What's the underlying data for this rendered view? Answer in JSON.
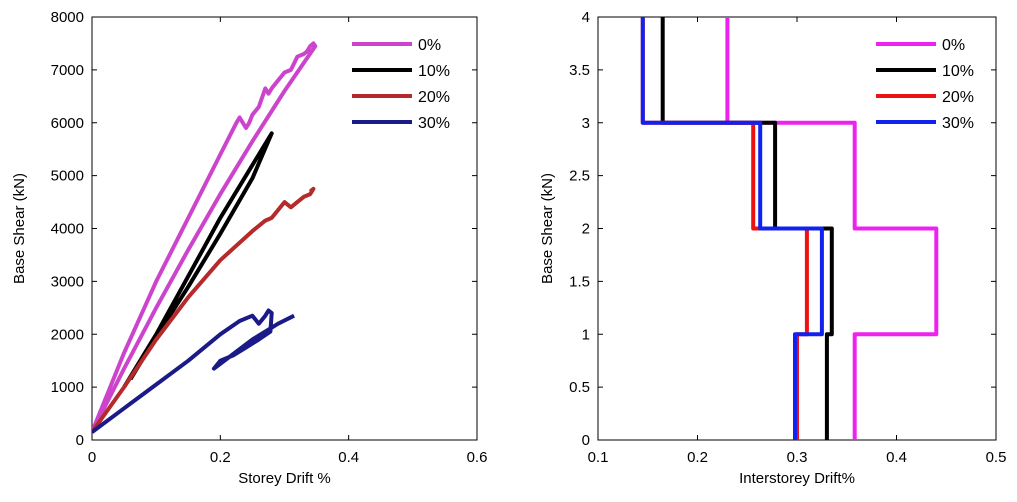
{
  "chart_data": [
    {
      "type": "line",
      "xlabel": "Storey Drift %",
      "ylabel": "Base Shear (kN)",
      "xlim": [
        0,
        0.6
      ],
      "ylim": [
        0,
        8000
      ],
      "xticks": [
        "0",
        "0.2",
        "0.4",
        "0.6"
      ],
      "yticks": [
        "0",
        "1000",
        "2000",
        "3000",
        "4000",
        "5000",
        "6000",
        "7000",
        "8000"
      ],
      "legend_position": "top-right",
      "series": [
        {
          "name": "0%",
          "color": "#cc44cc",
          "x": [
            0,
            0.05,
            0.1,
            0.15,
            0.2,
            0.225,
            0.23,
            0.24,
            0.245,
            0.25,
            0.26,
            0.27,
            0.275,
            0.28,
            0.29,
            0.3,
            0.31,
            0.32,
            0.33,
            0.335,
            0.34,
            0.345,
            0.348,
            0.3,
            0.25,
            0.2,
            0.15,
            0.1,
            0.05,
            0
          ],
          "y": [
            150,
            1650,
            3000,
            4200,
            5400,
            6000,
            6100,
            5900,
            6000,
            6150,
            6300,
            6650,
            6550,
            6650,
            6800,
            6950,
            7000,
            7250,
            7300,
            7350,
            7450,
            7500,
            7450,
            6600,
            5650,
            4650,
            3600,
            2500,
            1350,
            150
          ]
        },
        {
          "name": "10%",
          "color": "#000000",
          "x": [
            0.05,
            0.1,
            0.15,
            0.2,
            0.25,
            0.28,
            0.25,
            0.2,
            0.15,
            0.1,
            0.06
          ],
          "y": [
            1000,
            2000,
            3100,
            4200,
            5200,
            5800,
            4950,
            3900,
            2900,
            1950,
            1150
          ]
        },
        {
          "name": "20%",
          "color": "#b52a2a",
          "x": [
            0,
            0.05,
            0.1,
            0.15,
            0.2,
            0.25,
            0.27,
            0.28,
            0.29,
            0.3,
            0.31,
            0.32,
            0.33,
            0.34,
            0.345,
            0.34
          ],
          "y": [
            150,
            1000,
            1900,
            2700,
            3400,
            3950,
            4150,
            4200,
            4350,
            4500,
            4400,
            4500,
            4600,
            4650,
            4750,
            4700
          ]
        },
        {
          "name": "30%",
          "color": "#1a1a88",
          "x": [
            0,
            0.05,
            0.1,
            0.15,
            0.2,
            0.23,
            0.25,
            0.26,
            0.27,
            0.275,
            0.28,
            0.278,
            0.26,
            0.24,
            0.22,
            0.2,
            0.19,
            0.25,
            0.29,
            0.315
          ],
          "y": [
            150,
            600,
            1050,
            1500,
            2000,
            2250,
            2350,
            2200,
            2350,
            2450,
            2400,
            2050,
            1900,
            1750,
            1600,
            1500,
            1350,
            1900,
            2200,
            2350
          ]
        }
      ]
    },
    {
      "type": "line",
      "xlabel": "Interstorey Drift%",
      "ylabel": "Base Shear (kN)",
      "xlim": [
        0.1,
        0.5
      ],
      "ylim": [
        0,
        4
      ],
      "xticks": [
        "0.1",
        "0.2",
        "0.3",
        "0.4",
        "0.5"
      ],
      "yticks": [
        "0",
        "0.5",
        "1",
        "1.5",
        "2",
        "2.5",
        "3",
        "3.5",
        "4"
      ],
      "legend_position": "top-right",
      "series": [
        {
          "name": "0%",
          "color": "#ee22ee",
          "x": [
            0.358,
            0.358,
            0.44,
            0.44,
            0.358,
            0.358,
            0.23,
            0.23
          ],
          "y": [
            0,
            1,
            1,
            2,
            2,
            3,
            3,
            4
          ]
        },
        {
          "name": "10%",
          "color": "#000000",
          "x": [
            0.33,
            0.33,
            0.335,
            0.335,
            0.278,
            0.278,
            0.165,
            0.165
          ],
          "y": [
            0,
            1,
            1,
            2,
            2,
            3,
            3,
            4
          ]
        },
        {
          "name": "20%",
          "color": "#ee1111",
          "x": [
            0.3,
            0.3,
            0.31,
            0.31,
            0.256,
            0.256,
            0.145,
            0.145
          ],
          "y": [
            0,
            1,
            1,
            2,
            2,
            3,
            3,
            4
          ]
        },
        {
          "name": "30%",
          "color": "#1122ee",
          "x": [
            0.298,
            0.298,
            0.325,
            0.325,
            0.263,
            0.263,
            0.145,
            0.145
          ],
          "y": [
            0,
            1,
            1,
            2,
            2,
            3,
            3,
            4
          ]
        }
      ]
    }
  ]
}
